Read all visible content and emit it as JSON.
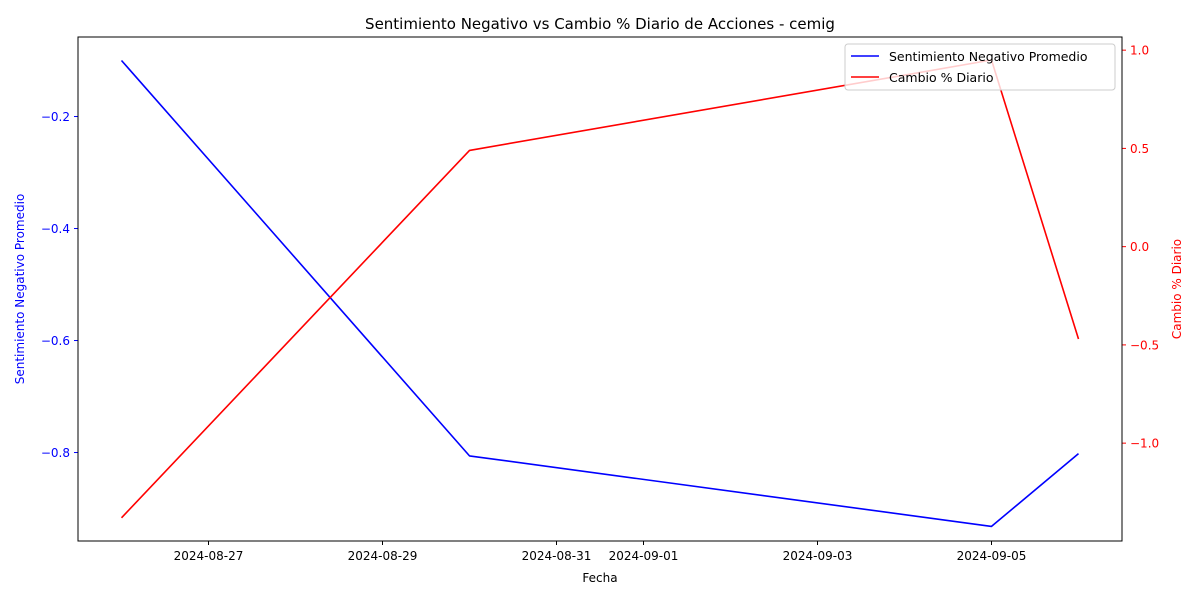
{
  "chart_data": {
    "type": "line",
    "title": "Sentimiento Negativo vs Cambio % Diario de Acciones - cemig",
    "xlabel": "Fecha",
    "ylabel_left": "Sentimiento Negativo Promedio",
    "ylabel_right": "Cambio % Diario",
    "x_dates": [
      "2024-08-26",
      "2024-08-30",
      "2024-09-05",
      "2024-09-06"
    ],
    "x_range": [
      "2024-08-25T12:00",
      "2024-09-06T12:00"
    ],
    "x_ticks": [
      "2024-08-27",
      "2024-08-29",
      "2024-08-31",
      "2024-09-01",
      "2024-09-03",
      "2024-09-05"
    ],
    "y_left_ticks": [
      -0.2,
      -0.4,
      -0.6,
      -0.8
    ],
    "y_left_tick_labels": [
      "−0.2",
      "−0.4",
      "−0.6",
      "−0.8"
    ],
    "y_left_range": [
      -0.958,
      -0.058
    ],
    "y_right_ticks": [
      1.0,
      0.5,
      0.0,
      -0.5,
      -1.0
    ],
    "y_right_tick_labels": [
      "1.0",
      "0.5",
      "0.0",
      "−0.5",
      "−1.0"
    ],
    "y_right_range": [
      -1.498,
      1.067
    ],
    "series": [
      {
        "name": "Sentimiento Negativo Promedio",
        "axis": "left",
        "color": "#0000ff",
        "values": [
          -0.1,
          -0.806,
          -0.932,
          -0.802
        ]
      },
      {
        "name": "Cambio % Diario",
        "axis": "right",
        "color": "#ff0000",
        "values": [
          -1.38,
          0.49,
          0.95,
          -0.47
        ]
      }
    ],
    "legend_position": "top-right",
    "grid": false
  }
}
